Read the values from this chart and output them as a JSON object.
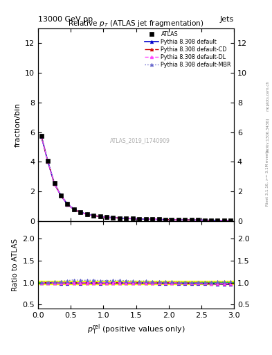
{
  "title": "Relative $p_T$ (ATLAS jet fragmentation)",
  "header_left": "13000 GeV pp",
  "header_right": "Jets",
  "watermark": "ATLAS_2019_I1740909",
  "ylabel_main": "fraction/bin",
  "ylabel_ratio": "Ratio to ATLAS",
  "right_label": "Rivet 3.1.10, >= 3.1M events",
  "arxiv_label": "[arXiv:1306.3436]",
  "mcplots_label": "mcplots.cern.ch",
  "main_xlim": [
    0,
    3
  ],
  "main_ylim": [
    0,
    13
  ],
  "ratio_xlim": [
    0,
    3
  ],
  "ratio_ylim": [
    0.4,
    2.4
  ],
  "data_x": [
    0.05,
    0.15,
    0.25,
    0.35,
    0.45,
    0.55,
    0.65,
    0.75,
    0.85,
    0.95,
    1.05,
    1.15,
    1.25,
    1.35,
    1.45,
    1.55,
    1.65,
    1.75,
    1.85,
    1.95,
    2.05,
    2.15,
    2.25,
    2.35,
    2.45,
    2.55,
    2.65,
    2.75,
    2.85,
    2.95
  ],
  "atlas_y": [
    5.75,
    4.05,
    2.55,
    1.75,
    1.15,
    0.8,
    0.6,
    0.48,
    0.38,
    0.32,
    0.27,
    0.24,
    0.21,
    0.19,
    0.17,
    0.16,
    0.14,
    0.13,
    0.12,
    0.11,
    0.1,
    0.095,
    0.088,
    0.082,
    0.075,
    0.07,
    0.065,
    0.06,
    0.055,
    0.05
  ],
  "pythia_default_y": [
    5.72,
    4.02,
    2.52,
    1.72,
    1.13,
    0.79,
    0.59,
    0.475,
    0.375,
    0.315,
    0.268,
    0.238,
    0.208,
    0.188,
    0.168,
    0.158,
    0.138,
    0.128,
    0.118,
    0.108,
    0.099,
    0.093,
    0.086,
    0.08,
    0.073,
    0.068,
    0.063,
    0.058,
    0.053,
    0.048
  ],
  "pythia_cd_y": [
    5.73,
    4.03,
    2.53,
    1.73,
    1.14,
    0.8,
    0.595,
    0.478,
    0.378,
    0.318,
    0.269,
    0.239,
    0.209,
    0.189,
    0.169,
    0.159,
    0.139,
    0.129,
    0.119,
    0.109,
    0.1,
    0.094,
    0.087,
    0.081,
    0.074,
    0.069,
    0.064,
    0.059,
    0.054,
    0.049
  ],
  "pythia_dl_y": [
    5.73,
    4.03,
    2.53,
    1.73,
    1.14,
    0.8,
    0.595,
    0.478,
    0.378,
    0.318,
    0.269,
    0.239,
    0.209,
    0.189,
    0.169,
    0.159,
    0.139,
    0.129,
    0.119,
    0.109,
    0.1,
    0.094,
    0.087,
    0.081,
    0.074,
    0.069,
    0.064,
    0.059,
    0.054,
    0.049
  ],
  "pythia_mbr_y": [
    5.8,
    4.1,
    2.6,
    1.8,
    1.2,
    0.85,
    0.63,
    0.505,
    0.4,
    0.335,
    0.282,
    0.252,
    0.22,
    0.198,
    0.176,
    0.165,
    0.145,
    0.133,
    0.122,
    0.112,
    0.102,
    0.096,
    0.089,
    0.083,
    0.076,
    0.071,
    0.066,
    0.061,
    0.056,
    0.051
  ],
  "ratio_default": [
    0.995,
    0.993,
    0.988,
    0.983,
    0.983,
    0.988,
    0.983,
    0.99,
    0.987,
    0.984,
    0.993,
    0.992,
    0.99,
    0.989,
    0.988,
    0.988,
    0.986,
    0.985,
    0.983,
    0.982,
    0.99,
    0.979,
    0.977,
    0.976,
    0.973,
    0.971,
    0.969,
    0.967,
    0.964,
    0.96
  ],
  "ratio_cd": [
    0.996,
    0.994,
    0.991,
    0.989,
    0.991,
    0.995,
    0.992,
    0.996,
    0.995,
    0.994,
    0.996,
    0.996,
    0.995,
    0.995,
    0.994,
    0.994,
    0.993,
    0.992,
    0.992,
    0.991,
    0.999,
    0.989,
    0.988,
    0.988,
    0.986,
    0.985,
    0.984,
    0.983,
    0.982,
    0.98
  ],
  "ratio_dl": [
    0.996,
    0.994,
    0.991,
    0.989,
    0.991,
    0.995,
    0.992,
    0.996,
    0.995,
    0.994,
    0.996,
    0.996,
    0.995,
    0.995,
    0.994,
    0.994,
    0.993,
    0.992,
    0.992,
    0.991,
    0.999,
    0.989,
    0.988,
    0.988,
    0.986,
    0.985,
    0.984,
    0.983,
    0.982,
    0.98
  ],
  "ratio_mbr": [
    1.009,
    1.012,
    1.02,
    1.029,
    1.043,
    1.063,
    1.05,
    1.052,
    1.053,
    1.047,
    1.044,
    1.05,
    1.048,
    1.042,
    1.035,
    1.031,
    1.036,
    1.023,
    1.017,
    1.018,
    1.02,
    1.011,
    1.011,
    1.012,
    1.013,
    1.014,
    1.015,
    1.017,
    1.018,
    1.02
  ],
  "color_default": "#0000cc",
  "color_cd": "#cc0000",
  "color_dl": "#ff44ff",
  "color_mbr": "#6666cc",
  "band_yellow": [
    0.96,
    1.04
  ],
  "band_green": [
    0.99,
    1.01
  ],
  "xticks": [
    0,
    0.5,
    1.0,
    1.5,
    2.0,
    2.5,
    3.0
  ],
  "main_yticks": [
    0,
    2,
    4,
    6,
    8,
    10,
    12
  ],
  "ratio_yticks": [
    0.5,
    1.0,
    1.5,
    2.0
  ]
}
